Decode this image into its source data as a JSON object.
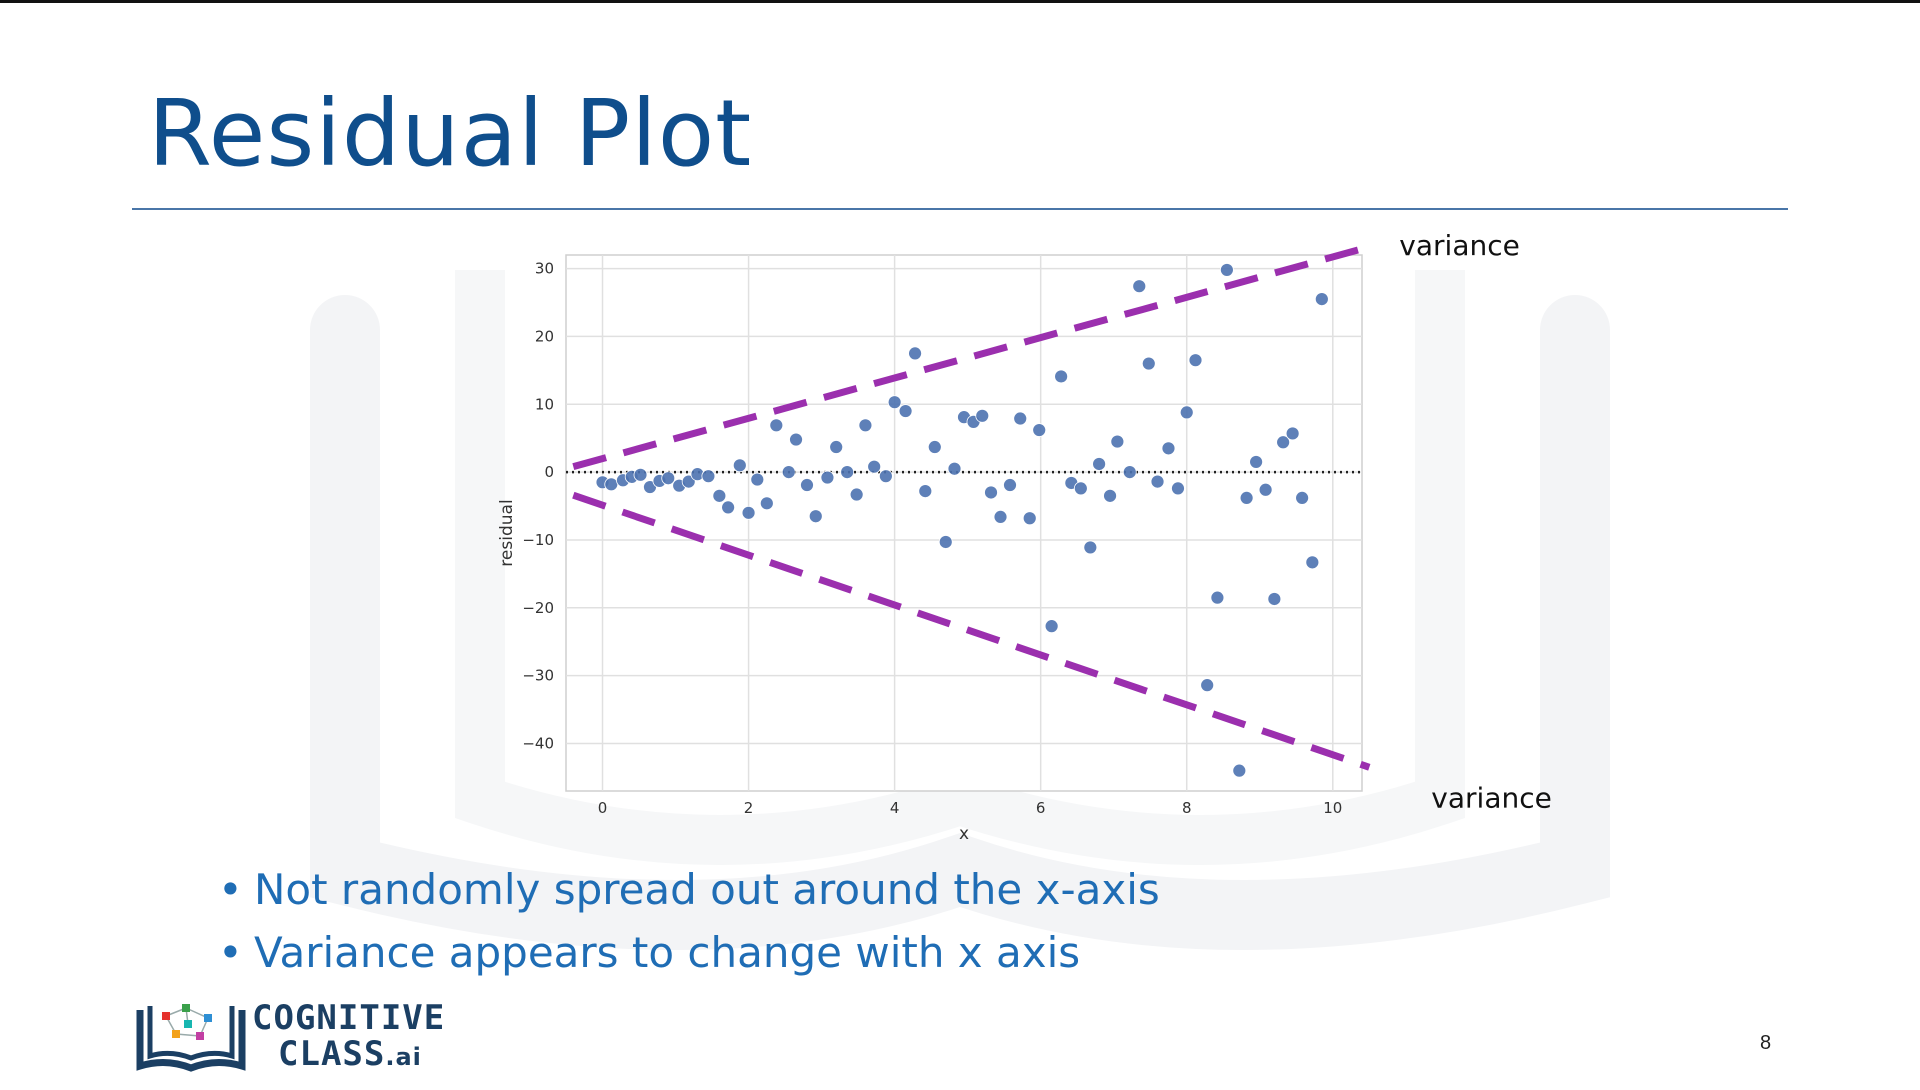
{
  "slide": {
    "title": "Residual Plot",
    "bullets": [
      "Not randomly spread out around the x-axis",
      "Variance appears to change with x axis"
    ],
    "page_number": "8",
    "logo": {
      "line1": "COGNITIVE",
      "line2": "CLASS",
      "suffix": ".ai"
    },
    "colors": {
      "title": "#0f4e8c",
      "bullet_text": "#1f6db5",
      "variance_lines": "#9b2fae",
      "points": "#4c72b0"
    }
  },
  "chart_data": {
    "type": "scatter",
    "title": "",
    "xlabel": "x",
    "ylabel": "residual",
    "xlim": [
      -0.5,
      10.4
    ],
    "ylim": [
      -47,
      32
    ],
    "xticks": [
      0,
      2,
      4,
      6,
      8,
      10
    ],
    "yticks": [
      30,
      20,
      10,
      0,
      -10,
      -20,
      -30,
      -40
    ],
    "ytick_labels": [
      "30",
      "20",
      "10",
      "0",
      "−10",
      "−20",
      "−30",
      "−40"
    ],
    "grid": true,
    "zero_line": {
      "y": 0,
      "style": "dotted"
    },
    "points": [
      [
        0.0,
        -1.5
      ],
      [
        0.12,
        -1.8
      ],
      [
        0.28,
        -1.2
      ],
      [
        0.4,
        -0.7
      ],
      [
        0.52,
        -0.4
      ],
      [
        0.65,
        -2.2
      ],
      [
        0.78,
        -1.3
      ],
      [
        0.9,
        -0.9
      ],
      [
        1.05,
        -2.0
      ],
      [
        1.18,
        -1.4
      ],
      [
        1.3,
        -0.3
      ],
      [
        1.45,
        -0.6
      ],
      [
        1.6,
        -3.5
      ],
      [
        1.72,
        -5.2
      ],
      [
        1.88,
        1.0
      ],
      [
        2.0,
        -6.0
      ],
      [
        2.12,
        -1.1
      ],
      [
        2.25,
        -4.6
      ],
      [
        2.38,
        6.9
      ],
      [
        2.55,
        0.0
      ],
      [
        2.65,
        4.8
      ],
      [
        2.8,
        -1.9
      ],
      [
        2.92,
        -6.5
      ],
      [
        3.08,
        -0.8
      ],
      [
        3.2,
        3.7
      ],
      [
        3.35,
        0.0
      ],
      [
        3.48,
        -3.3
      ],
      [
        3.6,
        6.9
      ],
      [
        3.72,
        0.8
      ],
      [
        3.88,
        -0.6
      ],
      [
        4.0,
        10.3
      ],
      [
        4.15,
        9.0
      ],
      [
        4.28,
        17.5
      ],
      [
        4.42,
        -2.8
      ],
      [
        4.55,
        3.7
      ],
      [
        4.7,
        -10.3
      ],
      [
        4.82,
        0.5
      ],
      [
        4.95,
        8.1
      ],
      [
        5.08,
        7.4
      ],
      [
        5.2,
        8.3
      ],
      [
        5.32,
        -3.0
      ],
      [
        5.45,
        -6.6
      ],
      [
        5.58,
        -1.9
      ],
      [
        5.72,
        7.9
      ],
      [
        5.85,
        -6.8
      ],
      [
        5.98,
        6.2
      ],
      [
        6.15,
        -22.7
      ],
      [
        6.28,
        14.1
      ],
      [
        6.42,
        -1.6
      ],
      [
        6.55,
        -2.4
      ],
      [
        6.68,
        -11.1
      ],
      [
        6.8,
        1.2
      ],
      [
        6.95,
        -3.5
      ],
      [
        7.05,
        4.5
      ],
      [
        7.22,
        0.0
      ],
      [
        7.35,
        27.4
      ],
      [
        7.48,
        16.0
      ],
      [
        7.6,
        -1.4
      ],
      [
        7.75,
        3.5
      ],
      [
        7.88,
        -2.4
      ],
      [
        8.0,
        8.8
      ],
      [
        8.12,
        16.5
      ],
      [
        8.28,
        -31.4
      ],
      [
        8.42,
        -18.5
      ],
      [
        8.55,
        29.8
      ],
      [
        8.72,
        -44.0
      ],
      [
        8.82,
        -3.8
      ],
      [
        8.95,
        1.5
      ],
      [
        9.08,
        -2.6
      ],
      [
        9.2,
        -18.7
      ],
      [
        9.32,
        4.4
      ],
      [
        9.45,
        5.7
      ],
      [
        9.58,
        -3.8
      ],
      [
        9.72,
        -13.3
      ],
      [
        9.85,
        25.5
      ]
    ],
    "annotations": [
      {
        "type": "dashed-line",
        "from": [
          -0.4,
          0.8
        ],
        "to": [
          10.5,
          33.2
        ],
        "color": "#9b2fae",
        "label": "variance",
        "label_position": "top-right"
      },
      {
        "type": "dashed-line",
        "from": [
          -0.4,
          -3.4
        ],
        "to": [
          10.5,
          -43.5
        ],
        "color": "#9b2fae",
        "label": "variance",
        "label_position": "bottom-right"
      }
    ]
  }
}
